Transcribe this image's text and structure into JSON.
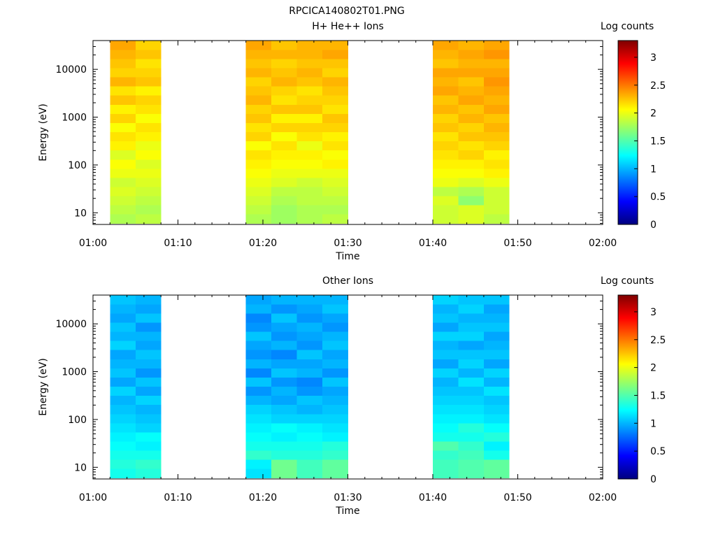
{
  "figure": {
    "title": "RPCICA140802T01.PNG"
  },
  "colormap_stops": [
    "#00007f",
    "#0000ff",
    "#007fff",
    "#00ffff",
    "#7fff7f",
    "#ffff00",
    "#ff7f00",
    "#ff0000",
    "#7f0000"
  ],
  "chart_data": [
    {
      "type": "heatmap",
      "title": "H+ He++ Ions",
      "xlabel": "Time",
      "ylabel": "Energy (eV)",
      "y_scale": "log",
      "x_range": [
        "01:00",
        "02:00"
      ],
      "y_range": [
        5.7,
        40000
      ],
      "x_tick_labels": [
        "01:00",
        "01:10",
        "01:20",
        "01:30",
        "01:40",
        "01:50",
        "02:00"
      ],
      "y_tick_labels": [
        "10",
        "100",
        "1000",
        "10000"
      ],
      "colorbar": {
        "label": "Log counts",
        "range": [
          0,
          3.3
        ],
        "tick_labels": [
          "0",
          "0.5",
          "1",
          "1.5",
          "2",
          "2.5",
          "3"
        ]
      },
      "columns": [
        {
          "start": "01:02",
          "end": "01:05",
          "values": [
            1.8,
            1.85,
            1.9,
            1.95,
            1.9,
            2.0,
            2.05,
            1.95,
            2.1,
            2.15,
            2.05,
            2.2,
            2.1,
            2.25,
            2.15,
            2.3,
            2.2,
            2.25,
            2.3,
            2.35
          ]
        },
        {
          "start": "01:05",
          "end": "01:08",
          "values": [
            1.85,
            1.8,
            1.85,
            1.9,
            1.95,
            2.0,
            1.95,
            2.05,
            2.0,
            2.1,
            2.15,
            2.05,
            2.15,
            2.2,
            2.1,
            2.25,
            2.2,
            2.15,
            2.25,
            2.2
          ]
        },
        {
          "start": "01:18",
          "end": "01:21",
          "values": [
            1.8,
            1.85,
            1.9,
            1.95,
            2.0,
            2.05,
            2.1,
            2.15,
            2.05,
            2.2,
            2.15,
            2.25,
            2.2,
            2.3,
            2.25,
            2.2,
            2.3,
            2.25,
            2.3,
            2.35
          ]
        },
        {
          "start": "01:21",
          "end": "01:24",
          "values": [
            1.75,
            1.75,
            1.8,
            1.85,
            1.95,
            2.0,
            2.05,
            2.1,
            2.15,
            2.05,
            2.2,
            2.1,
            2.25,
            2.15,
            2.2,
            2.3,
            2.25,
            2.2,
            2.3,
            2.25
          ]
        },
        {
          "start": "01:24",
          "end": "01:27",
          "values": [
            1.8,
            1.8,
            1.85,
            1.85,
            1.9,
            2.0,
            2.05,
            2.1,
            2.0,
            2.15,
            2.2,
            2.1,
            2.25,
            2.2,
            2.15,
            2.25,
            2.3,
            2.25,
            2.3,
            2.3
          ]
        },
        {
          "start": "01:27",
          "end": "01:30",
          "values": [
            1.85,
            1.8,
            1.85,
            1.9,
            1.95,
            2.0,
            2.1,
            2.05,
            2.15,
            2.1,
            2.2,
            2.25,
            2.15,
            2.2,
            2.25,
            2.3,
            2.2,
            2.25,
            2.35,
            2.3
          ]
        },
        {
          "start": "01:40",
          "end": "01:43",
          "values": [
            1.9,
            1.9,
            1.95,
            1.85,
            2.0,
            2.05,
            2.1,
            2.15,
            2.2,
            2.15,
            2.25,
            2.2,
            2.3,
            2.25,
            2.35,
            2.3,
            2.35,
            2.25,
            2.3,
            2.35
          ]
        },
        {
          "start": "01:43",
          "end": "01:46",
          "values": [
            1.95,
            1.95,
            1.7,
            1.8,
            1.95,
            2.05,
            2.1,
            2.2,
            2.15,
            2.25,
            2.2,
            2.3,
            2.25,
            2.35,
            2.3,
            2.25,
            2.35,
            2.3,
            2.35,
            2.3
          ]
        },
        {
          "start": "01:46",
          "end": "01:49",
          "values": [
            1.85,
            1.9,
            1.9,
            1.9,
            2.0,
            2.1,
            2.15,
            2.1,
            2.2,
            2.25,
            2.3,
            2.25,
            2.35,
            2.3,
            2.35,
            2.4,
            2.35,
            2.3,
            2.4,
            2.35
          ]
        }
      ]
    },
    {
      "type": "heatmap",
      "title": "Other Ions",
      "xlabel": "Time",
      "ylabel": "Energy (eV)",
      "y_scale": "log",
      "x_range": [
        "01:00",
        "02:00"
      ],
      "y_range": [
        5.7,
        40000
      ],
      "x_tick_labels": [
        "01:00",
        "01:10",
        "01:20",
        "01:30",
        "01:40",
        "01:50",
        "02:00"
      ],
      "y_tick_labels": [
        "10",
        "100",
        "1000",
        "10000"
      ],
      "colorbar": {
        "label": "Log counts",
        "range": [
          0,
          3.3
        ],
        "tick_labels": [
          "0",
          "0.5",
          "1",
          "1.5",
          "2",
          "2.5",
          "3"
        ]
      },
      "columns": [
        {
          "start": "01:02",
          "end": "01:05",
          "values": [
            1.3,
            1.35,
            1.3,
            1.25,
            1.2,
            1.15,
            1.1,
            1.05,
            1.0,
            1.1,
            0.95,
            1.05,
            1.0,
            0.95,
            1.1,
            1.0,
            1.05,
            0.95,
            1.0,
            1.05
          ]
        },
        {
          "start": "01:05",
          "end": "01:08",
          "values": [
            1.35,
            1.4,
            1.3,
            1.2,
            1.25,
            1.1,
            1.05,
            1.0,
            1.1,
            0.95,
            1.05,
            0.9,
            1.0,
            1.05,
            0.95,
            1.0,
            0.9,
            1.05,
            0.95,
            1.0
          ]
        },
        {
          "start": "01:18",
          "end": "01:21",
          "values": [
            1.15,
            1.2,
            1.4,
            1.3,
            1.25,
            1.2,
            1.15,
            1.1,
            1.0,
            0.9,
            1.05,
            0.85,
            1.0,
            0.9,
            0.95,
            1.05,
            0.9,
            0.85,
            1.0,
            0.95
          ]
        },
        {
          "start": "01:21",
          "end": "01:24",
          "values": [
            1.6,
            1.6,
            1.35,
            1.3,
            1.2,
            1.25,
            1.1,
            1.05,
            0.95,
            1.0,
            0.9,
            1.05,
            0.95,
            0.85,
            1.0,
            0.9,
            0.95,
            1.05,
            0.9,
            1.0
          ]
        },
        {
          "start": "01:24",
          "end": "01:27",
          "values": [
            1.45,
            1.45,
            1.35,
            1.3,
            1.25,
            1.2,
            1.1,
            1.0,
            1.05,
            0.9,
            0.85,
            1.0,
            0.95,
            1.05,
            0.9,
            0.95,
            1.0,
            0.9,
            0.95,
            1.0
          ]
        },
        {
          "start": "01:27",
          "end": "01:30",
          "values": [
            1.55,
            1.55,
            1.4,
            1.35,
            1.2,
            1.15,
            1.1,
            1.05,
            1.0,
            0.95,
            1.05,
            0.9,
            1.0,
            0.95,
            1.05,
            1.0,
            0.9,
            0.95,
            1.05,
            1.0
          ]
        },
        {
          "start": "01:40",
          "end": "01:43",
          "values": [
            1.45,
            1.45,
            1.4,
            1.5,
            1.3,
            1.25,
            1.2,
            1.15,
            1.1,
            1.05,
            1.0,
            1.1,
            0.95,
            1.05,
            1.0,
            1.1,
            0.95,
            1.05,
            1.0,
            1.1
          ]
        },
        {
          "start": "01:43",
          "end": "01:46",
          "values": [
            1.5,
            1.5,
            1.45,
            1.4,
            1.3,
            1.35,
            1.2,
            1.15,
            1.1,
            1.05,
            1.15,
            1.0,
            1.1,
            1.05,
            0.95,
            1.1,
            1.05,
            1.0,
            1.1,
            1.05
          ]
        },
        {
          "start": "01:46",
          "end": "01:49",
          "values": [
            1.55,
            1.55,
            1.3,
            1.2,
            1.35,
            1.25,
            1.15,
            1.1,
            1.05,
            1.15,
            1.0,
            1.1,
            0.95,
            1.05,
            1.0,
            0.95,
            1.05,
            1.0,
            0.95,
            1.05
          ]
        }
      ]
    }
  ]
}
